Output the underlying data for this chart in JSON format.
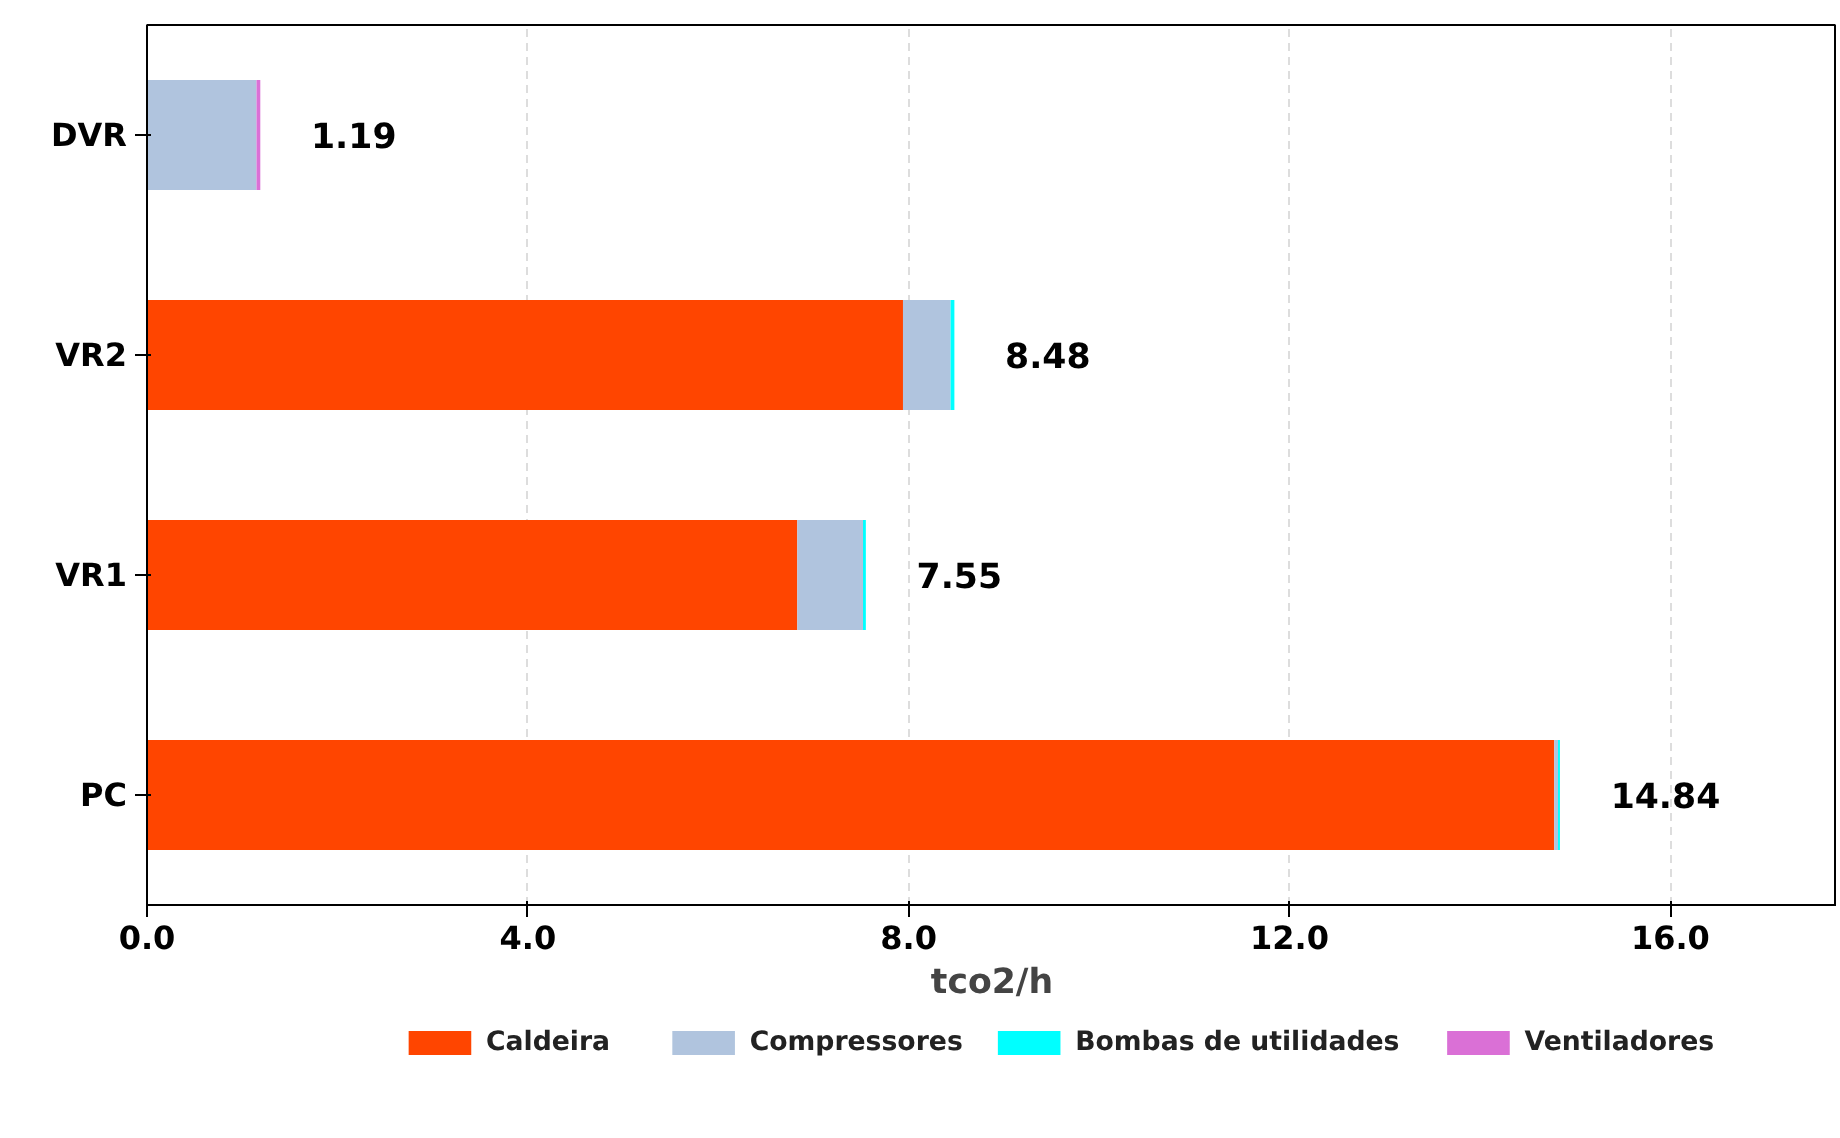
{
  "chart_data": {
    "type": "bar",
    "orientation": "horizontal",
    "stacked": true,
    "xlabel": "tco2/h",
    "categories": [
      "DVR",
      "VR2",
      "VR1",
      "PC"
    ],
    "series": [
      {
        "name": "Caldeira",
        "color": "#ff4500",
        "values": [
          0,
          7.94,
          6.83,
          14.78
        ]
      },
      {
        "name": "Compressores",
        "color": "#b0c4de",
        "values": [
          1.15,
          0.5,
          0.69,
          0.04
        ]
      },
      {
        "name": "Bombas de utilidades",
        "color": "#00ffff",
        "values": [
          0,
          0.04,
          0.03,
          0.02
        ]
      },
      {
        "name": "Ventiladores",
        "color": "#da70d6",
        "values": [
          0.04,
          0,
          0,
          0
        ]
      }
    ],
    "totals": [
      "1.19",
      "8.48",
      "7.55",
      "14.84"
    ],
    "xlim": [
      0,
      17.75
    ],
    "xticks": [
      {
        "value": 0,
        "label": "0.0"
      },
      {
        "value": 4,
        "label": "4.0"
      },
      {
        "value": 8,
        "label": "8.0"
      },
      {
        "value": 12,
        "label": "12.0"
      },
      {
        "value": 16,
        "label": "16.0"
      }
    ],
    "grid": "x",
    "legend": "bottom"
  }
}
